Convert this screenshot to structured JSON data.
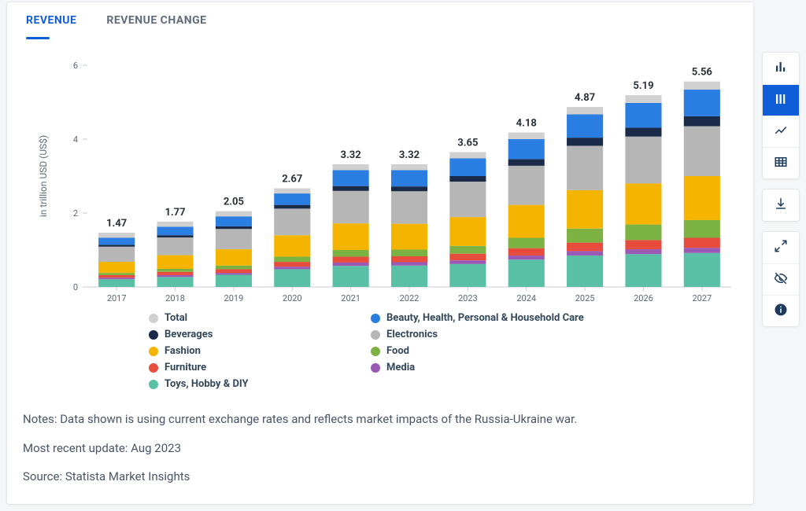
{
  "tabs": {
    "revenue": "REVENUE",
    "revenue_change": "REVENUE CHANGE"
  },
  "chart": {
    "type": "stacked-bar",
    "y_axis_label": "in trillion USD (US$)",
    "y_axis": {
      "min": 0,
      "max": 6,
      "tick_step": 2,
      "label_fontsize": 12,
      "tick_fontsize": 11
    },
    "x_categories": [
      "2017",
      "2018",
      "2019",
      "2020",
      "2021",
      "2022",
      "2023",
      "2024",
      "2025",
      "2026",
      "2027"
    ],
    "totals": [
      1.47,
      1.77,
      2.05,
      2.67,
      3.32,
      3.32,
      3.65,
      4.18,
      4.87,
      5.19,
      5.56
    ],
    "series_order": [
      "toys",
      "media",
      "furniture",
      "food",
      "fashion",
      "electronics",
      "beverages",
      "beauty",
      "total_cap"
    ],
    "series": {
      "toys": {
        "label": "Toys, Hobby & DIY",
        "color": "#59c0a6",
        "values": [
          0.21,
          0.27,
          0.33,
          0.48,
          0.57,
          0.58,
          0.62,
          0.74,
          0.85,
          0.89,
          0.92
        ]
      },
      "media": {
        "label": "Media",
        "color": "#9b59b6",
        "values": [
          0.04,
          0.05,
          0.05,
          0.07,
          0.09,
          0.09,
          0.1,
          0.11,
          0.12,
          0.13,
          0.14
        ]
      },
      "furniture": {
        "label": "Furniture",
        "color": "#e74c3c",
        "values": [
          0.07,
          0.09,
          0.1,
          0.13,
          0.16,
          0.16,
          0.18,
          0.2,
          0.23,
          0.25,
          0.27
        ]
      },
      "food": {
        "label": "Food",
        "color": "#7bb241",
        "values": [
          0.06,
          0.08,
          0.1,
          0.14,
          0.18,
          0.18,
          0.21,
          0.28,
          0.38,
          0.42,
          0.48
        ]
      },
      "fashion": {
        "label": "Fashion",
        "color": "#f4b400",
        "values": [
          0.3,
          0.37,
          0.44,
          0.58,
          0.72,
          0.7,
          0.78,
          0.89,
          1.04,
          1.11,
          1.19
        ]
      },
      "electronics": {
        "label": "Electronics",
        "color": "#b6b6b6",
        "values": [
          0.41,
          0.48,
          0.55,
          0.72,
          0.88,
          0.88,
          0.96,
          1.06,
          1.2,
          1.27,
          1.35
        ]
      },
      "beverages": {
        "label": "Beverages",
        "color": "#1a2b4a",
        "values": [
          0.05,
          0.06,
          0.07,
          0.1,
          0.13,
          0.13,
          0.15,
          0.18,
          0.22,
          0.24,
          0.27
        ]
      },
      "beauty": {
        "label": "Beauty, Health, Personal & Household Care",
        "color": "#2a7de1",
        "values": [
          0.19,
          0.23,
          0.27,
          0.31,
          0.43,
          0.44,
          0.48,
          0.54,
          0.63,
          0.67,
          0.72
        ]
      },
      "total_cap": {
        "label": "Total",
        "color": "#d0d0d0",
        "values": [
          0.14,
          0.14,
          0.14,
          0.14,
          0.16,
          0.16,
          0.17,
          0.18,
          0.2,
          0.21,
          0.22
        ]
      }
    },
    "bar_width_ratio": 0.62,
    "value_label_fontsize": 13,
    "value_label_fontweight": 700,
    "category_fontsize": 11,
    "tick_color": "#5a6776",
    "baseline_color": "#c9ced6",
    "y_axis_line_color": "#c9ced6",
    "background_color": "#ffffff"
  },
  "legend": [
    {
      "key": "total_cap",
      "col": 0
    },
    {
      "key": "beauty",
      "col": 1
    },
    {
      "key": "beverages",
      "col": 0
    },
    {
      "key": "electronics",
      "col": 1
    },
    {
      "key": "fashion",
      "col": 0
    },
    {
      "key": "food",
      "col": 1
    },
    {
      "key": "furniture",
      "col": 0
    },
    {
      "key": "media",
      "col": 1
    },
    {
      "key": "toys",
      "col": 0
    }
  ],
  "notes": {
    "line1": "Notes: Data shown is using current exchange rates and reflects market impacts of the Russia-Ukraine war.",
    "line2": "Most recent update: Aug 2023",
    "line3": "Source: Statista Market Insights"
  },
  "sidebar": {
    "group1": [
      "bar-chart",
      "stacked-bar-chart",
      "line-chart",
      "table"
    ],
    "active": "stacked-bar-chart",
    "group2": [
      "download"
    ],
    "group3": [
      "expand",
      "visibility-off",
      "info"
    ]
  }
}
